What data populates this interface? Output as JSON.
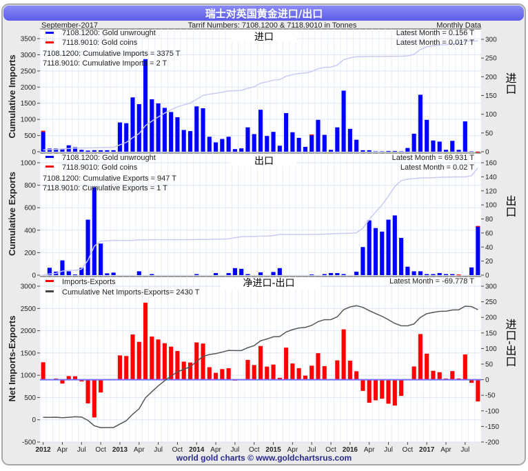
{
  "header": {
    "title": "瑞士对英国黄金进口/出口",
    "date": "September-2017",
    "tariff": "Tarrif Numbers: 7108.1200 & 7118.9010 in Tonnes",
    "frequency": "Monthly Data",
    "footer": "world gold charts © www.goldchartsrus.com"
  },
  "colors": {
    "unwrought": "#0000ff",
    "coins": "#ff0000",
    "net": "#ff0000",
    "cum_line": "#c9c9f4",
    "net_line": "#555555",
    "title_bar": "#6b6bef",
    "footer": "#28288f"
  },
  "chart_data": [
    {
      "type": "bar",
      "panel": "imports",
      "panel_label": "进口",
      "ylabel": "Cumulative Imports",
      "y2label": "进口",
      "ylim": [
        0,
        3500
      ],
      "y2lim": [
        0,
        300
      ],
      "left_ticks": [
        0,
        500,
        1000,
        1500,
        2000,
        2500,
        3000,
        3500
      ],
      "right_ticks": [
        0,
        50,
        100,
        150,
        200,
        250,
        300
      ],
      "legend": [
        "7108.1200: Gold unwrought",
        "7118.9010: Gold coins"
      ],
      "cumulative_text": [
        "7108.1200: Cumulative Imports = 3375 T",
        "7118.9010: Cumulative Imports = 2 T"
      ],
      "latest": [
        "Latest Month = 0.156 T",
        "Latest Month = 0.017 T"
      ],
      "series": [
        {
          "name": "7108.1200: Gold unwrought",
          "axis": "right",
          "values": [
            53,
            8.5,
            8.5,
            8.5,
            17,
            12,
            5,
            3,
            4,
            4,
            4,
            4,
            78,
            76,
            145,
            127,
            247,
            140,
            129,
            117,
            106,
            92,
            58,
            55,
            121,
            116,
            40,
            25,
            34,
            40,
            7,
            9,
            65,
            47,
            112,
            42,
            53,
            16,
            103,
            52,
            37,
            13,
            44,
            85,
            45,
            5,
            65,
            163,
            61,
            32,
            4,
            4,
            1,
            1,
            2,
            2,
            1,
            10,
            48,
            152,
            85,
            30,
            27,
            5,
            29,
            5,
            81,
            1,
            0.156
          ]
        },
        {
          "name": "7118.9010: Gold coins",
          "axis": "right",
          "values": [
            3,
            0,
            0,
            0,
            0,
            0,
            0,
            0,
            0,
            0,
            0,
            0,
            0,
            0,
            0,
            0,
            0,
            0,
            0,
            0,
            0,
            0,
            0,
            0,
            0,
            0,
            0,
            0,
            0,
            0,
            0,
            0,
            0,
            0,
            0,
            0,
            0,
            0,
            0,
            0,
            0,
            0,
            2,
            0,
            0,
            0,
            0,
            0,
            0,
            0,
            0,
            0,
            0,
            0,
            0,
            0,
            0,
            0,
            0,
            0,
            0,
            0,
            0,
            0,
            0,
            0,
            0,
            0,
            0.017
          ]
        },
        {
          "name": "Cumulative Imports",
          "axis": "left",
          "type": "line",
          "derived": "cumulative sum of monthly imports"
        }
      ]
    },
    {
      "type": "bar",
      "panel": "exports",
      "panel_label": "出口",
      "ylabel": "Cumulative Exports",
      "y2label": "出口",
      "ylim": [
        0,
        1000
      ],
      "y2lim": [
        0,
        160
      ],
      "left_ticks": [
        0,
        200,
        400,
        600,
        800,
        1000
      ],
      "right_ticks": [
        0,
        20,
        40,
        60,
        80,
        100,
        120,
        140,
        160
      ],
      "legend": [
        "7108.1200: Gold unwrought",
        "7118.9010: Gold coins"
      ],
      "cumulative_text": [
        "7108.1200: Cumulative Exports = 947 T",
        "7118.9010: Cumulative Exports = 1 T"
      ],
      "latest": [
        "Latest Month = 69.931 T",
        "Latest Month = 0.02 T"
      ],
      "series": [
        {
          "name": "7108.1200: Gold unwrought",
          "axis": "right",
          "values": [
            0,
            10.5,
            5,
            21,
            5.5,
            1,
            10.5,
            79,
            125,
            45,
            2.6,
            3.6,
            0,
            0,
            0,
            5.5,
            0,
            1.5,
            0,
            0,
            0,
            0,
            0,
            0,
            1.5,
            0,
            0,
            3,
            0,
            3,
            10,
            9,
            1.5,
            0,
            4,
            0,
            4.5,
            10,
            0,
            0,
            0,
            0,
            1,
            0,
            1.5,
            3,
            3,
            1.5,
            0,
            5,
            40,
            78,
            67,
            62,
            79,
            85,
            53,
            12,
            5.5,
            5.5,
            1.5,
            1.5,
            3,
            1.5,
            1.5,
            0,
            0,
            11,
            69.931
          ]
        },
        {
          "name": "7118.9010: Gold coins",
          "axis": "right",
          "values": [
            0,
            0,
            0,
            0,
            0,
            0,
            0,
            0,
            0,
            0,
            0,
            0,
            0,
            0,
            0,
            0,
            0,
            0,
            0,
            0,
            0,
            0,
            0,
            0,
            0,
            0,
            0,
            0,
            0,
            0,
            0,
            0,
            0,
            0,
            0,
            0,
            0,
            0,
            0,
            0,
            0,
            0,
            0,
            0,
            0,
            0,
            0,
            0,
            0,
            0,
            0,
            0,
            0,
            0,
            0,
            0,
            0,
            0,
            0,
            0,
            0,
            0,
            0,
            0,
            0,
            1,
            0,
            0,
            0.02
          ]
        },
        {
          "name": "Cumulative Exports",
          "axis": "left",
          "type": "line",
          "derived": "cumulative sum of monthly exports"
        }
      ]
    },
    {
      "type": "bar",
      "panel": "net",
      "panel_label": "净进口-出口",
      "ylabel": "Net Imports-Exports",
      "y2label": "进口-出口",
      "ylim": [
        -500,
        3000
      ],
      "y2lim": [
        -200,
        300
      ],
      "left_ticks": [
        -500,
        0,
        500,
        1000,
        1500,
        2000,
        2500,
        3000
      ],
      "right_ticks": [
        -200,
        -150,
        -100,
        -50,
        0,
        50,
        100,
        150,
        200,
        250,
        300
      ],
      "legend": [
        "Imports-Exports",
        "Cumulative Net Imports-Exports= 2430 T"
      ],
      "latest": [
        "Latest Month = -69.778 T"
      ],
      "series": [
        {
          "name": "Imports-Exports",
          "axis": "right",
          "derived": "imports minus exports"
        },
        {
          "name": "Cumulative Net Imports-Exports",
          "axis": "left",
          "type": "line",
          "derived": "cumulative sum of net"
        }
      ]
    }
  ],
  "x_axis": {
    "start": "2012-01",
    "months": 69,
    "quarter_labels": [
      "2012",
      "Apr",
      "Jul",
      "Oct",
      "2013",
      "Apr",
      "Jul",
      "Oct",
      "2014",
      "Apr",
      "Jul",
      "Oct",
      "2015",
      "Apr",
      "Jul",
      "Oct",
      "2016",
      "Apr",
      "Jul",
      "Oct",
      "2017",
      "Apr",
      "Jul"
    ]
  }
}
